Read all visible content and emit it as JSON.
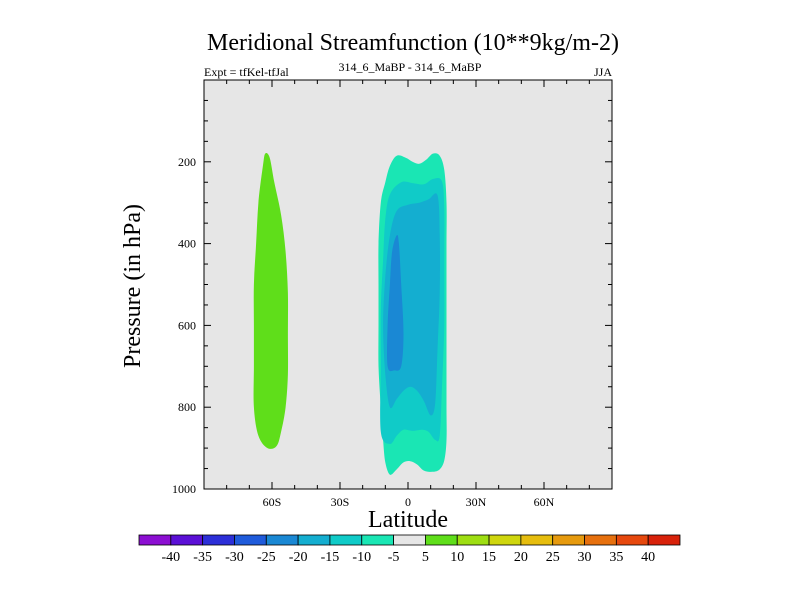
{
  "chart_data": {
    "type": "contour",
    "title": "Meridional Streamfunction (10**9kg/m-2)",
    "left_string": "Expt = tfKel-tfJal",
    "center_string": "314_6_MaBP - 314_6_MaBP",
    "right_string": "JJA",
    "xlabel": "Latitude",
    "ylabel": "Pressure (in hPa)",
    "xlim": [
      -90,
      90
    ],
    "ylim": [
      1000,
      0
    ],
    "x_ticks": [
      {
        "value": -60,
        "label": "60S"
      },
      {
        "value": -30,
        "label": "30S"
      },
      {
        "value": 0,
        "label": "0"
      },
      {
        "value": 30,
        "label": "30N"
      },
      {
        "value": 60,
        "label": "60N"
      }
    ],
    "y_ticks": [
      {
        "value": 200,
        "label": "200"
      },
      {
        "value": 400,
        "label": "400"
      },
      {
        "value": 600,
        "label": "600"
      },
      {
        "value": 800,
        "label": "800"
      },
      {
        "value": 1000,
        "label": "1000"
      }
    ],
    "background_color": "#e6e6e6",
    "colorbar": {
      "labels": [
        "-40",
        "-35",
        "-30",
        "-25",
        "-20",
        "-15",
        "-10",
        "-5",
        "5",
        "10",
        "15",
        "20",
        "25",
        "30",
        "35",
        "40"
      ],
      "colors": [
        "#8c0fd2",
        "#5b10d6",
        "#2c2fd8",
        "#1f5bdb",
        "#1a88d4",
        "#14aed0",
        "#10cbc8",
        "#1ae6b4",
        "#e6e6e6",
        "#5fde1a",
        "#9ede12",
        "#cfd60e",
        "#e6bd0e",
        "#e69a0e",
        "#e6700e",
        "#e6480e",
        "#d8220a"
      ]
    },
    "regions": [
      {
        "name": "positive-5-to-10",
        "color": "#5fde1a",
        "points": [
          [
            -62,
            900
          ],
          [
            -66,
            870
          ],
          [
            -68,
            800
          ],
          [
            -68,
            700
          ],
          [
            -68,
            600
          ],
          [
            -68,
            500
          ],
          [
            -67,
            400
          ],
          [
            -66,
            300
          ],
          [
            -64,
            210
          ],
          [
            -63,
            180
          ],
          [
            -61,
            190
          ],
          [
            -59,
            250
          ],
          [
            -56,
            330
          ],
          [
            -54,
            420
          ],
          [
            -53,
            520
          ],
          [
            -53,
            620
          ],
          [
            -53,
            720
          ],
          [
            -54,
            800
          ],
          [
            -56,
            860
          ],
          [
            -58,
            895
          ]
        ]
      },
      {
        "name": "negative-5-to-10",
        "color": "#1ae6b4",
        "points": [
          [
            -10,
            935
          ],
          [
            -11,
            880
          ],
          [
            -12,
            800
          ],
          [
            -13,
            700
          ],
          [
            -13,
            600
          ],
          [
            -13,
            500
          ],
          [
            -13,
            400
          ],
          [
            -12,
            300
          ],
          [
            -10,
            250
          ],
          [
            -8,
            210
          ],
          [
            -5,
            185
          ],
          [
            -1,
            190
          ],
          [
            2,
            200
          ],
          [
            5,
            205
          ],
          [
            8,
            195
          ],
          [
            11,
            180
          ],
          [
            14,
            185
          ],
          [
            16,
            220
          ],
          [
            17,
            300
          ],
          [
            17,
            400
          ],
          [
            17,
            500
          ],
          [
            17,
            600
          ],
          [
            17,
            700
          ],
          [
            17,
            800
          ],
          [
            17,
            880
          ],
          [
            16,
            930
          ],
          [
            14,
            952
          ],
          [
            11,
            958
          ],
          [
            7,
            955
          ],
          [
            4,
            940
          ],
          [
            1,
            932
          ],
          [
            -2,
            935
          ],
          [
            -5,
            952
          ],
          [
            -8,
            965
          ]
        ]
      },
      {
        "name": "negative-10-to-15",
        "color": "#10cbc8",
        "points": [
          [
            -12,
            860
          ],
          [
            -12,
            700
          ],
          [
            -12,
            560
          ],
          [
            -11,
            440
          ],
          [
            -10,
            340
          ],
          [
            -8,
            280
          ],
          [
            -3,
            250
          ],
          [
            2,
            252
          ],
          [
            7,
            255
          ],
          [
            11,
            242
          ],
          [
            15,
            248
          ],
          [
            16,
            320
          ],
          [
            16,
            450
          ],
          [
            16,
            600
          ],
          [
            15,
            750
          ],
          [
            14,
            870
          ],
          [
            12,
            880
          ],
          [
            9,
            860
          ],
          [
            6,
            855
          ],
          [
            2,
            858
          ],
          [
            -2,
            855
          ],
          [
            -5,
            870
          ],
          [
            -8,
            890
          ]
        ]
      },
      {
        "name": "negative-15-to-20",
        "color": "#14aed0",
        "points": [
          [
            -10,
            720
          ],
          [
            -11,
            600
          ],
          [
            -10,
            480
          ],
          [
            -8,
            380
          ],
          [
            -5,
            320
          ],
          [
            0,
            305
          ],
          [
            5,
            300
          ],
          [
            9,
            292
          ],
          [
            13,
            282
          ],
          [
            14,
            380
          ],
          [
            14,
            520
          ],
          [
            13,
            660
          ],
          [
            12,
            790
          ],
          [
            10,
            820
          ],
          [
            7,
            785
          ],
          [
            4,
            760
          ],
          [
            1,
            750
          ],
          [
            -2,
            760
          ],
          [
            -5,
            780
          ],
          [
            -8,
            800
          ]
        ]
      },
      {
        "name": "negative-20-to-25",
        "color": "#1a88d4",
        "points": [
          [
            -9,
            700
          ],
          [
            -9,
            600
          ],
          [
            -8,
            500
          ],
          [
            -7,
            420
          ],
          [
            -5,
            380
          ],
          [
            -4,
            400
          ],
          [
            -3,
            500
          ],
          [
            -2,
            620
          ],
          [
            -3,
            700
          ],
          [
            -6,
            710
          ]
        ]
      }
    ]
  }
}
